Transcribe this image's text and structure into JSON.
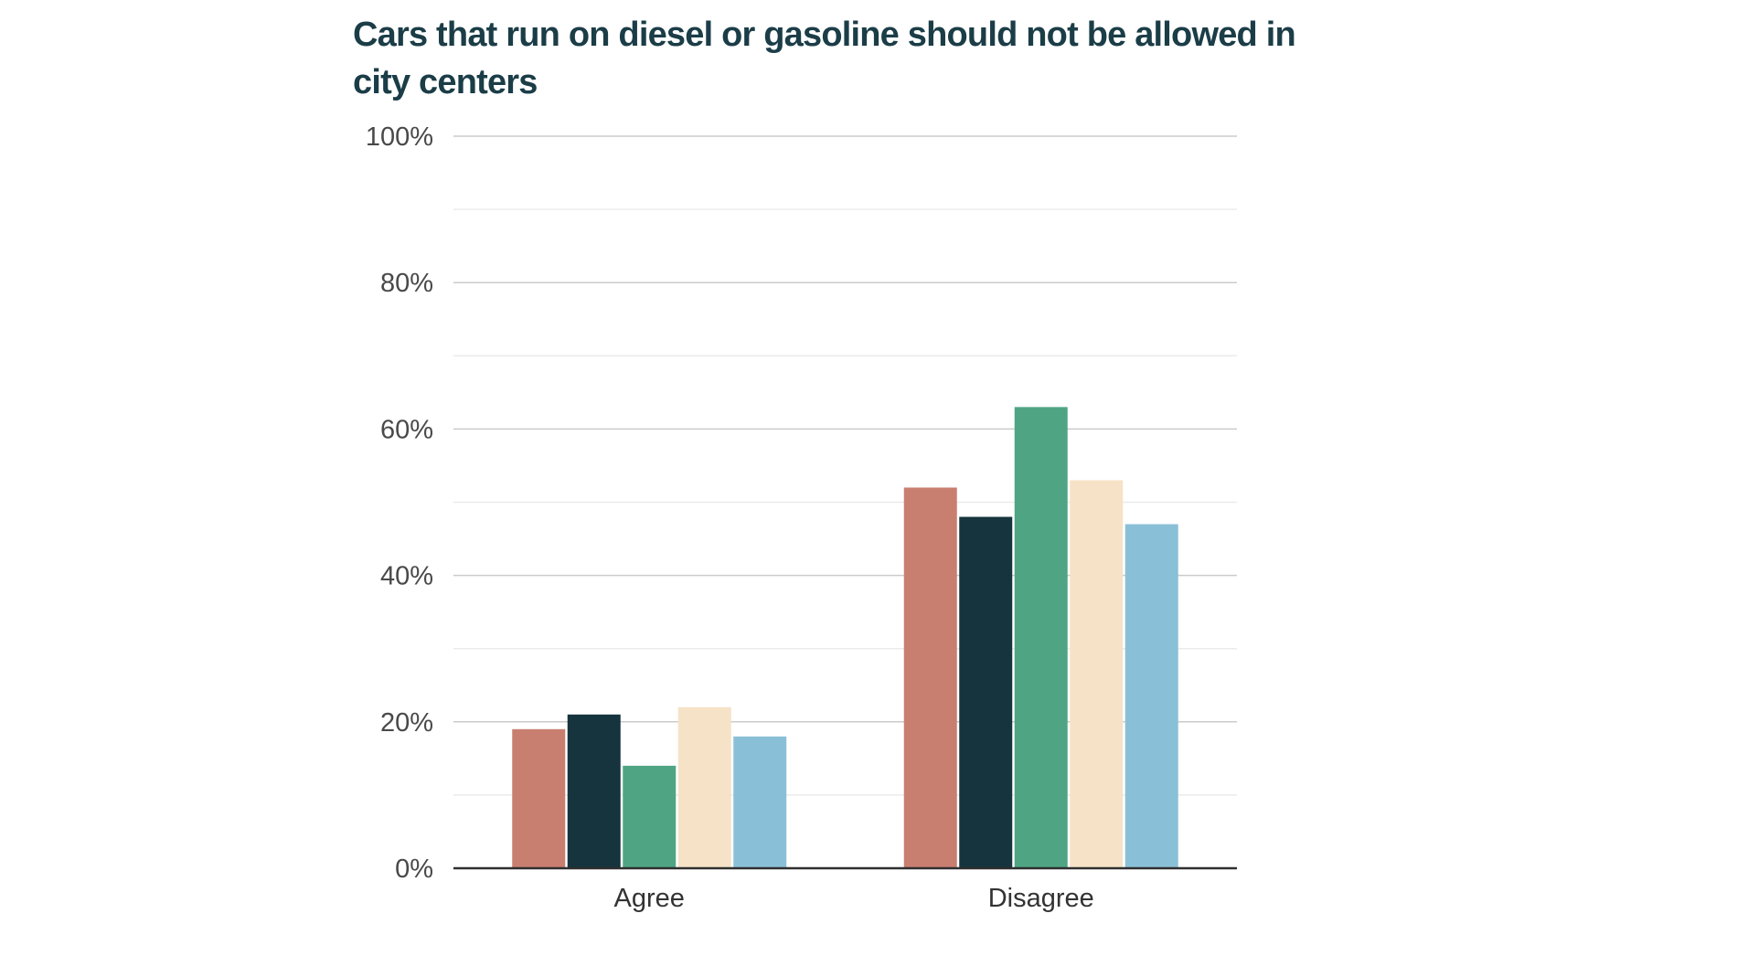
{
  "header": {
    "title_lines": [
      "Cars that run on diesel or gasoline should not be allowed in",
      "city centers"
    ],
    "title_color": "#1B3D47"
  },
  "chart_data": {
    "type": "bar",
    "title": "Cars that run on diesel or gasoline should not be allowed in city centers",
    "categories": [
      "Agree",
      "Disagree"
    ],
    "series": [
      {
        "name": "terracotta",
        "color": "#C97F70",
        "values": [
          19,
          52
        ]
      },
      {
        "name": "dark-teal",
        "color": "#16343D",
        "values": [
          21,
          48
        ]
      },
      {
        "name": "green",
        "color": "#4FA583",
        "values": [
          14,
          63
        ]
      },
      {
        "name": "cream",
        "color": "#F6E2C7",
        "values": [
          22,
          53
        ]
      },
      {
        "name": "light-blue",
        "color": "#8AC0D7",
        "values": [
          18,
          47
        ]
      }
    ],
    "xlabel": "",
    "ylabel": "",
    "ylim": [
      0,
      100
    ],
    "ytick_values": [
      0,
      20,
      40,
      60,
      80,
      100
    ],
    "ytick_labels": [
      "0%",
      "20%",
      "40%",
      "60%",
      "80%",
      "100%"
    ],
    "minor_gridline_values": [
      10,
      30,
      50,
      70,
      90
    ],
    "unit": "%",
    "legend": "none",
    "grid": "horizontal"
  },
  "styles": {
    "background": "#FFFFFF",
    "axis_label_color": "#494949",
    "category_label_color": "#333333",
    "major_gridline_color": "#CBCBCB",
    "minor_gridline_color": "#EBEBEB",
    "baseline_color": "#2F2F2F"
  }
}
